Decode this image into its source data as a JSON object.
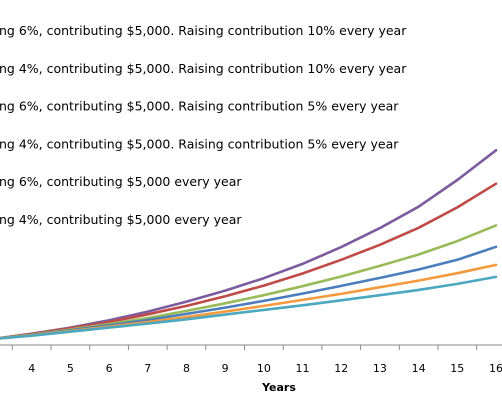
{
  "chart_data": {
    "type": "line",
    "xlabel": "Years",
    "x": [
      3,
      4,
      5,
      6,
      7,
      8,
      9,
      10,
      11,
      12,
      13,
      14,
      15,
      16
    ],
    "x_tick_labels": [
      "4",
      "5",
      "6",
      "7",
      "8",
      "9",
      "10",
      "11",
      "12",
      "13",
      "14",
      "15",
      "16"
    ],
    "xlim": [
      3,
      16
    ],
    "ylim": [
      0,
      100
    ],
    "grid": false,
    "legend_position": "top-left",
    "series": [
      {
        "name": "ng 6%, contributing $5,000. Raising contribution 10% every year",
        "color": "#7c5c9e",
        "values": [
          0,
          1.6,
          3.4,
          5.6,
          8.2,
          11.2,
          14.5,
          18.2,
          22.5,
          27.5,
          33.2,
          39.6,
          47.6,
          56.5
        ]
      },
      {
        "name": "ng 4%, contributing $5,000. Raising contribution 10% every year",
        "color": "#bf4a46",
        "values": [
          0,
          1.5,
          3.2,
          5.1,
          7.4,
          9.9,
          12.8,
          16.0,
          19.6,
          23.7,
          28.2,
          33.3,
          39.4,
          46.5
        ]
      },
      {
        "name": "ng 6%, contributing $5,000. Raising contribution 5% every year",
        "color": "#98bb58",
        "values": [
          0,
          1.3,
          2.8,
          4.5,
          6.3,
          8.4,
          10.7,
          13.1,
          15.8,
          18.7,
          21.9,
          25.3,
          29.3,
          34.0
        ]
      },
      {
        "name": "ng 4%, contributing $5,000. Raising contribution 5% every year",
        "color": "#4a7dbb",
        "values": [
          0,
          1.2,
          2.6,
          4.1,
          5.7,
          7.5,
          9.4,
          11.4,
          13.6,
          15.9,
          18.3,
          20.8,
          23.7,
          27.6
        ]
      },
      {
        "name": "ng 6%, contributing $5,000 every year",
        "color": "#f59a3c",
        "values": [
          0,
          1.1,
          2.4,
          3.7,
          5.1,
          6.6,
          8.2,
          9.9,
          11.7,
          13.5,
          15.5,
          17.5,
          19.7,
          22.2
        ]
      },
      {
        "name": "ng 4%, contributing $5,000 every year",
        "color": "#4aa8c0",
        "values": [
          0,
          1.0,
          2.2,
          3.4,
          4.6,
          5.9,
          7.3,
          8.7,
          10.1,
          11.6,
          13.1,
          14.7,
          16.5,
          18.6
        ]
      }
    ]
  }
}
